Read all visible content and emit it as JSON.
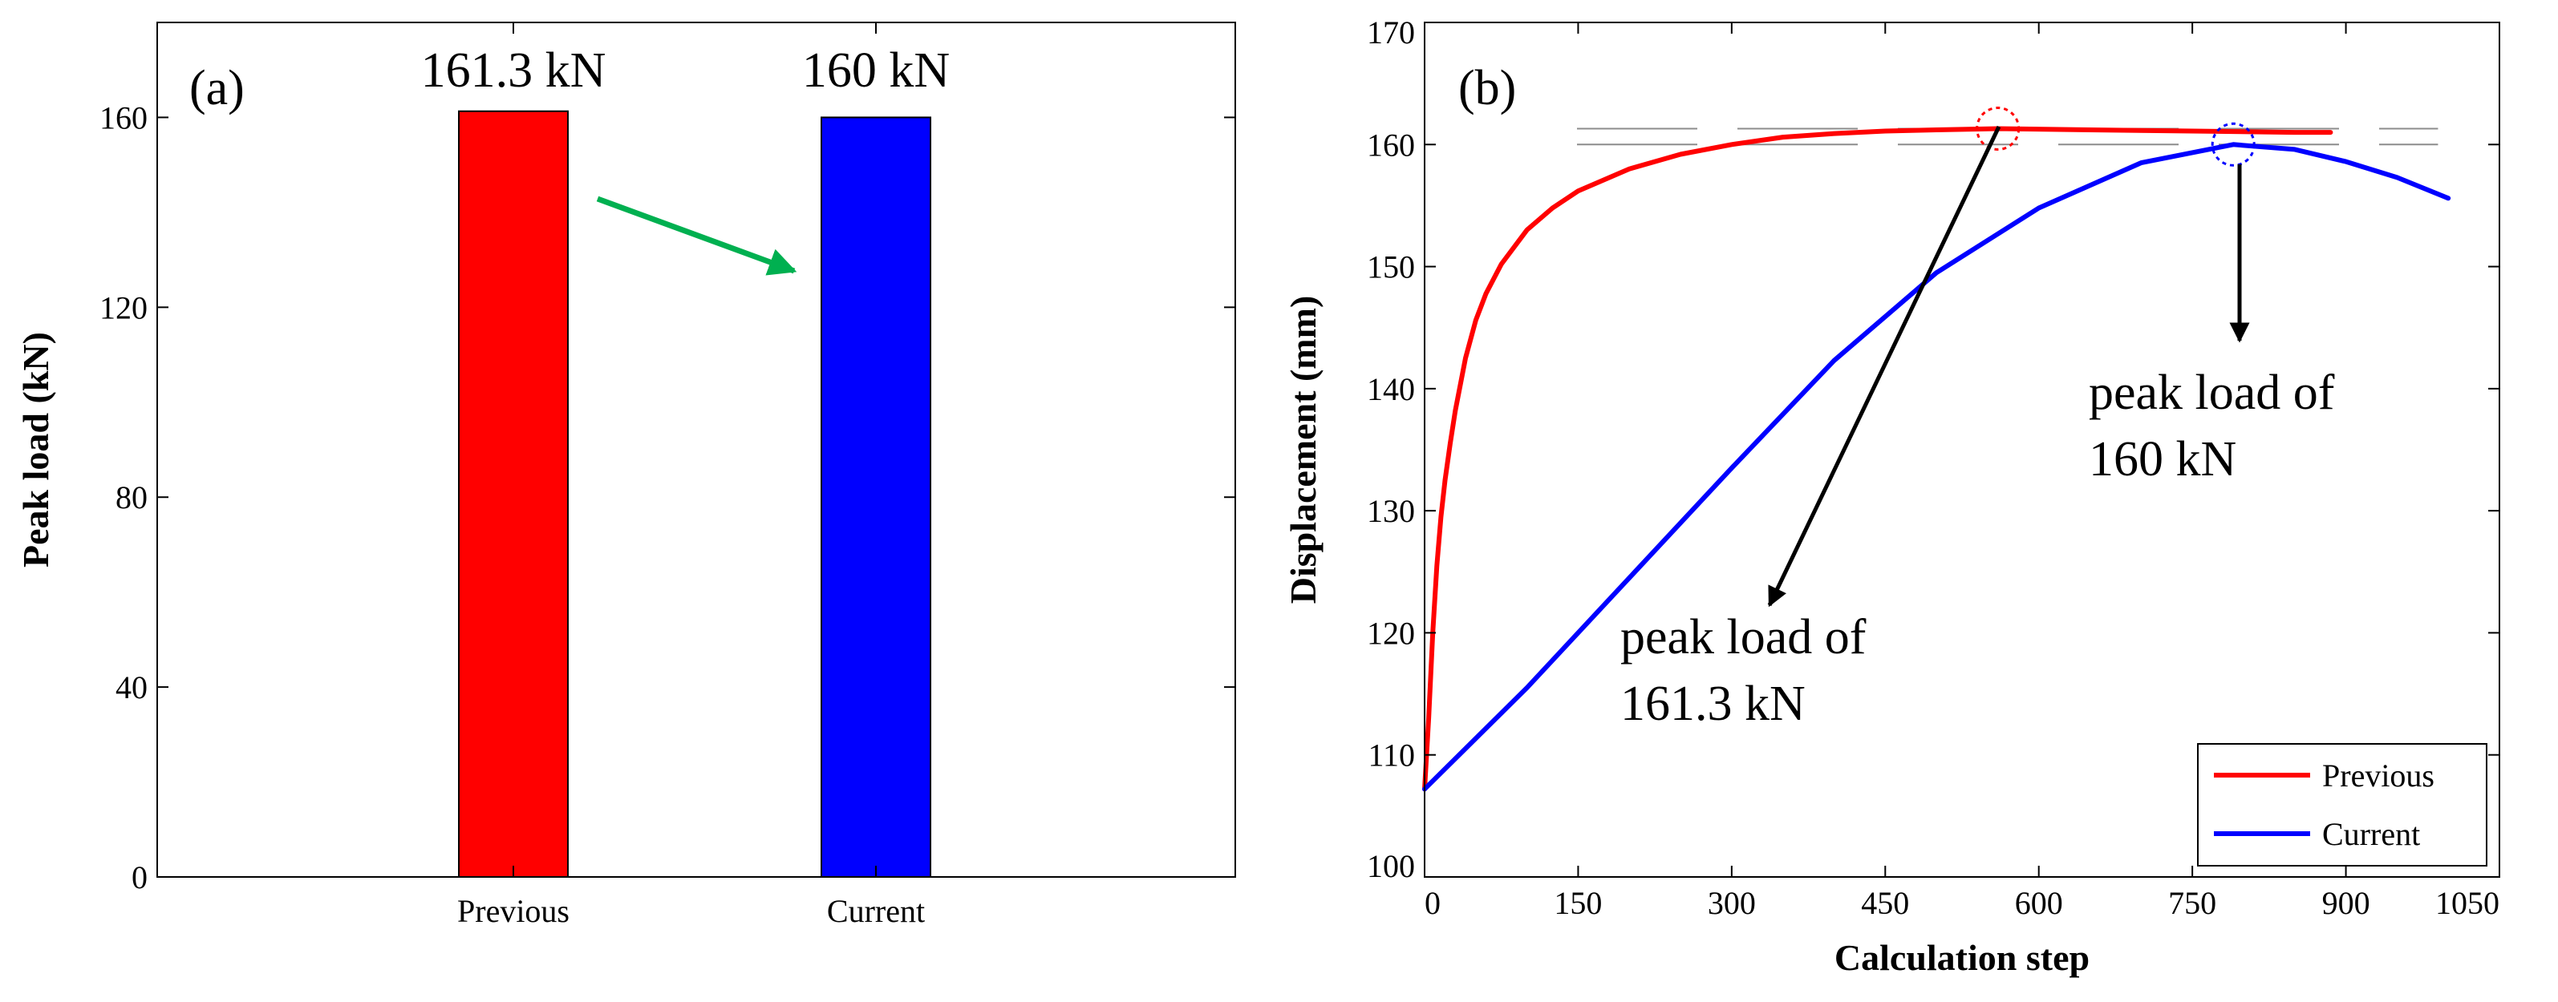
{
  "chart_data": [
    {
      "type": "bar",
      "panel_label": "(a)",
      "categories": [
        "Previous",
        "Current"
      ],
      "values": [
        161.3,
        160
      ],
      "colors": [
        "#ff0000",
        "#0000ff"
      ],
      "value_labels": [
        "161.3 kN",
        "160 kN"
      ],
      "ylabel": "Peak load (kN)",
      "xlabel": "",
      "ylim": [
        0,
        180
      ],
      "yticks": [
        0,
        40,
        80,
        120,
        160
      ],
      "annotation": "green arrow pointing from Previous bar toward Current bar"
    },
    {
      "type": "line",
      "panel_label": "(b)",
      "xlabel": "Calculation step",
      "ylabel": "Displacement (mm)",
      "xlim": [
        0,
        1050
      ],
      "ylim": [
        100,
        170
      ],
      "xticks": [
        0,
        150,
        300,
        450,
        600,
        750,
        900,
        1050
      ],
      "yticks": [
        100,
        110,
        120,
        130,
        140,
        150,
        160,
        170
      ],
      "series": [
        {
          "name": "Previous",
          "color": "#ff0000",
          "x": [
            0,
            4,
            8,
            12,
            16,
            20,
            25,
            30,
            40,
            50,
            60,
            75,
            100,
            125,
            150,
            200,
            250,
            300,
            350,
            400,
            450,
            500,
            560,
            650,
            750,
            850,
            885
          ],
          "y": [
            107.2,
            113,
            120,
            125.5,
            129.5,
            132.5,
            135.5,
            138.2,
            142.5,
            145.6,
            147.8,
            150.2,
            153,
            154.8,
            156.2,
            158,
            159.2,
            160,
            160.6,
            160.9,
            161.1,
            161.2,
            161.3,
            161.2,
            161.1,
            161.0,
            161.0
          ]
        },
        {
          "name": "Current",
          "color": "#0000ff",
          "x": [
            0,
            100,
            200,
            300,
            400,
            500,
            600,
            700,
            790,
            850,
            900,
            950,
            1000
          ],
          "y": [
            107.2,
            115.5,
            124.5,
            133.5,
            142.3,
            149.5,
            154.8,
            158.5,
            160.0,
            159.6,
            158.6,
            157.3,
            155.6
          ]
        }
      ],
      "reference_lines": [
        161.3,
        160
      ],
      "peak_markers": [
        {
          "series": "Previous",
          "x": 560,
          "y": 161.3
        },
        {
          "series": "Current",
          "x": 790,
          "y": 160
        }
      ],
      "annotations": [
        {
          "text_line1": "peak load of",
          "text_line2": "161.3 kN"
        },
        {
          "text_line1": "peak load of",
          "text_line2": "160 kN"
        }
      ],
      "legend": {
        "position": "bottom-right",
        "entries": [
          "Previous",
          "Current"
        ]
      }
    }
  ]
}
